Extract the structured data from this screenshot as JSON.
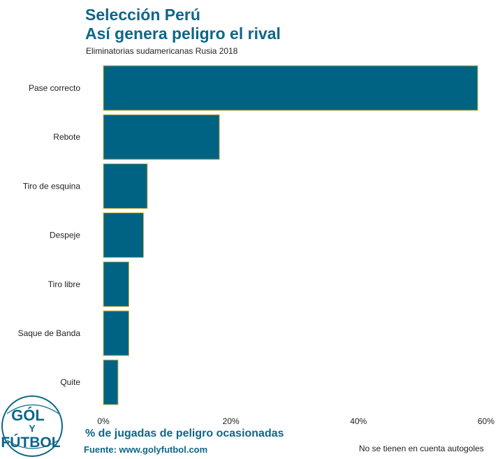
{
  "header": {
    "title_line1": "Selección Perú",
    "title_line2": "Así genera peligro el rival",
    "subtitle": "Eliminatorias sudamericanas Rusia 2018"
  },
  "footer": {
    "xlabel": "% de jugadas de peligro ocasionadas",
    "source": "Fuente: www.golyfutbol.com",
    "note": "No se tienen en cuenta autogoles"
  },
  "logo": {
    "line1": "GÓL",
    "line2": "Y",
    "line3": "FÚTBOL"
  },
  "colors": {
    "bar": "#006384",
    "bar_border": "#d4b94a",
    "title": "#0e6688"
  },
  "chart_data": {
    "type": "bar",
    "orientation": "horizontal",
    "categories": [
      "Pase correcto",
      "Rebote",
      "Tiro de esquina",
      "Despeje",
      "Tiro libre",
      "Saque de Banda",
      "Quite"
    ],
    "values": [
      58.7,
      18.2,
      6.9,
      6.3,
      4.0,
      4.0,
      2.3
    ],
    "xlim": [
      0,
      60
    ],
    "xticks": [
      0,
      20,
      40,
      60
    ],
    "xtick_labels": [
      "0%",
      "20%",
      "40%",
      "60%"
    ],
    "grid": false
  }
}
